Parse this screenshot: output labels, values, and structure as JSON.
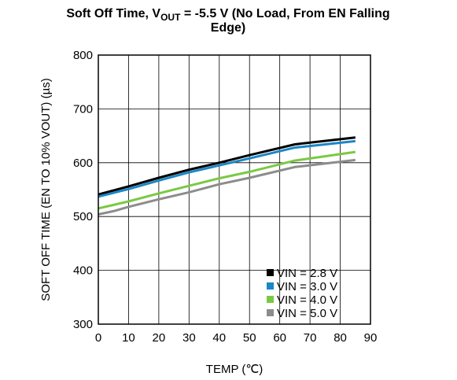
{
  "chart_data": {
    "type": "line",
    "title": {
      "line1_prefix": "Soft Off Time, V",
      "line1_sub": "OUT",
      "line1_suffix": " = -5.5 V (No Load, From EN Falling",
      "line2": "Edge)"
    },
    "xlabel": "TEMP (℃)",
    "ylabel": "SOFT OFF TIME (EN TO 10% VOUT) (µs)",
    "xlim": [
      0,
      90
    ],
    "ylim": [
      300,
      800
    ],
    "xticks": [
      "0",
      "10",
      "20",
      "30",
      "40",
      "50",
      "60",
      "70",
      "80",
      "90"
    ],
    "yticks": [
      "300",
      "400",
      "500",
      "600",
      "700",
      "800"
    ],
    "grid": true,
    "legend_position": "bottom-right",
    "series": [
      {
        "name": "VIN = 2.8 V",
        "color": "#000000",
        "x": [
          0,
          10,
          20,
          30,
          40,
          50,
          65,
          85
        ],
        "y": [
          541,
          556,
          572,
          587,
          600,
          614,
          634,
          647
        ]
      },
      {
        "name": "VIN = 3.0 V",
        "color": "#1a87c6",
        "x": [
          0,
          10,
          20,
          30,
          40,
          50,
          65,
          85
        ],
        "y": [
          537,
          551,
          567,
          582,
          595,
          608,
          628,
          640
        ]
      },
      {
        "name": "VIN = 4.0 V",
        "color": "#7ac943",
        "x": [
          0,
          10,
          20,
          30,
          40,
          50,
          65,
          85
        ],
        "y": [
          515,
          528,
          543,
          557,
          571,
          583,
          604,
          620
        ]
      },
      {
        "name": "VIN = 5.0 V",
        "color": "#8c8c8c",
        "x": [
          0,
          5,
          10,
          20,
          30,
          40,
          50,
          65,
          85
        ],
        "y": [
          504,
          510,
          518,
          532,
          545,
          560,
          572,
          592,
          605
        ]
      }
    ]
  }
}
